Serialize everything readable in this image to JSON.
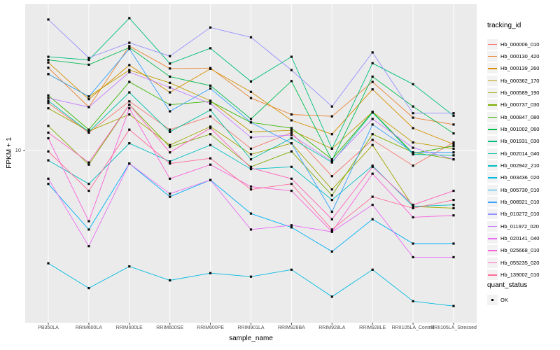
{
  "chart_data": {
    "type": "line",
    "title": "",
    "xlabel": "sample_name",
    "ylabel": "FPKM + 1",
    "y_scale": "log10",
    "ylim": [
      1.59,
      47.7
    ],
    "y_breaks": [
      10
    ],
    "y_tick_labels": [
      "10"
    ],
    "grid": "major",
    "panel_color": "#EBEBEB",
    "grid_color": "#FFFFFF",
    "point_color": "#0a0a0a",
    "legend_title": "tracking_id",
    "legend_position": "right",
    "categories": [
      "PB350LA",
      "RRIM600LA",
      "RRIM600LE",
      "RRIM600SE",
      "RRIM600PE",
      "RRIM901LA",
      "RRIM928BA",
      "RRIM928LA",
      "RRIM928LE",
      "RRII105LA_Control",
      "RRII105LA_Stressed"
    ],
    "series": [
      {
        "name": "Hb_000006_010",
        "color": "#F8766D",
        "values": [
          16.6,
          12.1,
          16.9,
          12.5,
          14.4,
          10.2,
          12.1,
          7.6,
          11.2,
          8.5,
          10.9
        ]
      },
      {
        "name": "Hb_000130_420",
        "color": "#EA8331",
        "values": [
          24.2,
          15.9,
          30.5,
          24.0,
          24.1,
          17.5,
          14.7,
          14.4,
          20.8,
          14.2,
          13.2
        ]
      },
      {
        "name": "Hb_000139_260",
        "color": "#D89000",
        "values": [
          25.6,
          17.3,
          24.9,
          18.6,
          23.9,
          18.7,
          13.8,
          11.9,
          19.2,
          12.7,
          10.7
        ]
      },
      {
        "name": "Hb_000362_170",
        "color": "#C09B00",
        "values": [
          22.6,
          17.8,
          23.6,
          20.6,
          17.0,
          12.2,
          12.4,
          10.2,
          15.1,
          10.9,
          10.2
        ]
      },
      {
        "name": "Hb_000589_190",
        "color": "#A3A500",
        "values": [
          15.7,
          12.3,
          14.7,
          10.6,
          12.9,
          9.6,
          10.8,
          6.6,
          10.6,
          5.5,
          5.4
        ]
      },
      {
        "name": "Hb_000737_030",
        "color": "#7CAE00",
        "values": [
          13.0,
          8.6,
          16.3,
          10.4,
          11.9,
          8.4,
          9.9,
          6.2,
          11.9,
          9.8,
          9.1
        ]
      },
      {
        "name": "Hb_000847_080",
        "color": "#39B600",
        "values": [
          18.0,
          12.5,
          20.8,
          16.3,
          16.9,
          13.5,
          12.7,
          9.1,
          15.1,
          9.7,
          10.5
        ]
      },
      {
        "name": "Hb_001002_060",
        "color": "#00BB4E",
        "values": [
          26.3,
          25.0,
          30.0,
          22.0,
          20.0,
          14.0,
          21.0,
          9.0,
          22.0,
          16.0,
          12.0
        ]
      },
      {
        "name": "Hb_001931_030",
        "color": "#00BF7D",
        "values": [
          27.2,
          26.3,
          41.1,
          25.3,
          29.8,
          20.9,
          27.2,
          10.2,
          25.4,
          20.3,
          14.5
        ]
      },
      {
        "name": "Hb_002014_040",
        "color": "#00C1A3",
        "values": [
          17.0,
          12.2,
          18.6,
          12.2,
          15.4,
          9.1,
          11.4,
          8.8,
          15.0,
          9.6,
          9.5
        ]
      },
      {
        "name": "Hb_002942_210",
        "color": "#00BFC4",
        "values": [
          9.0,
          7.0,
          10.8,
          8.9,
          10.6,
          8.2,
          8.4,
          5.9,
          8.5,
          5.5,
          5.6
        ]
      },
      {
        "name": "Hb_003436_020",
        "color": "#00BAE0",
        "values": [
          3.0,
          2.3,
          2.9,
          2.5,
          2.7,
          2.6,
          2.8,
          2.1,
          2.8,
          2.0,
          1.9
        ]
      },
      {
        "name": "Hb_005730_010",
        "color": "#00B0F6",
        "values": [
          7.0,
          4.3,
          8.7,
          6.1,
          7.3,
          5.1,
          4.4,
          3.4,
          4.8,
          3.7,
          3.7
        ]
      },
      {
        "name": "Hb_008921_010",
        "color": "#35A2FF",
        "values": [
          22.6,
          17.8,
          29.6,
          15.2,
          19.4,
          13.5,
          10.8,
          5.2,
          13.2,
          9.8,
          9.8
        ]
      },
      {
        "name": "Hb_010272_010",
        "color": "#9590FF",
        "values": [
          40.5,
          26.9,
          31.6,
          27.4,
          37.2,
          33.5,
          23.6,
          16.0,
          28.5,
          14.9,
          14.9
        ]
      },
      {
        "name": "Hb_011972_020",
        "color": "#C77CFF",
        "values": [
          17.5,
          15.9,
          23.1,
          19.6,
          16.5,
          11.5,
          11.8,
          8.9,
          14.0,
          10.3,
          9.1
        ]
      },
      {
        "name": "Hb_020141_040",
        "color": "#E76BF3",
        "values": [
          7.4,
          3.6,
          8.7,
          6.3,
          7.3,
          4.3,
          4.5,
          4.2,
          5.6,
          3.2,
          3.2
        ]
      },
      {
        "name": "Hb_025668_010",
        "color": "#FA62DB",
        "values": [
          11.4,
          4.7,
          15.7,
          7.4,
          8.6,
          6.8,
          6.5,
          4.2,
          7.8,
          4.9,
          5.0
        ]
      },
      {
        "name": "Hb_055235_020",
        "color": "#FF62BC",
        "values": [
          12.1,
          8.8,
          16.3,
          9.8,
          12.7,
          8.3,
          7.4,
          4.8,
          8.4,
          5.6,
          6.5
        ]
      },
      {
        "name": "Hb_139002_010",
        "color": "#FF6A98",
        "values": [
          9.9,
          6.5,
          12.5,
          8.7,
          9.2,
          6.6,
          7.0,
          4.3,
          6.1,
          5.4,
          5.9
        ]
      }
    ],
    "quant_legend": {
      "title": "quant_status",
      "items": [
        "OK"
      ]
    }
  }
}
